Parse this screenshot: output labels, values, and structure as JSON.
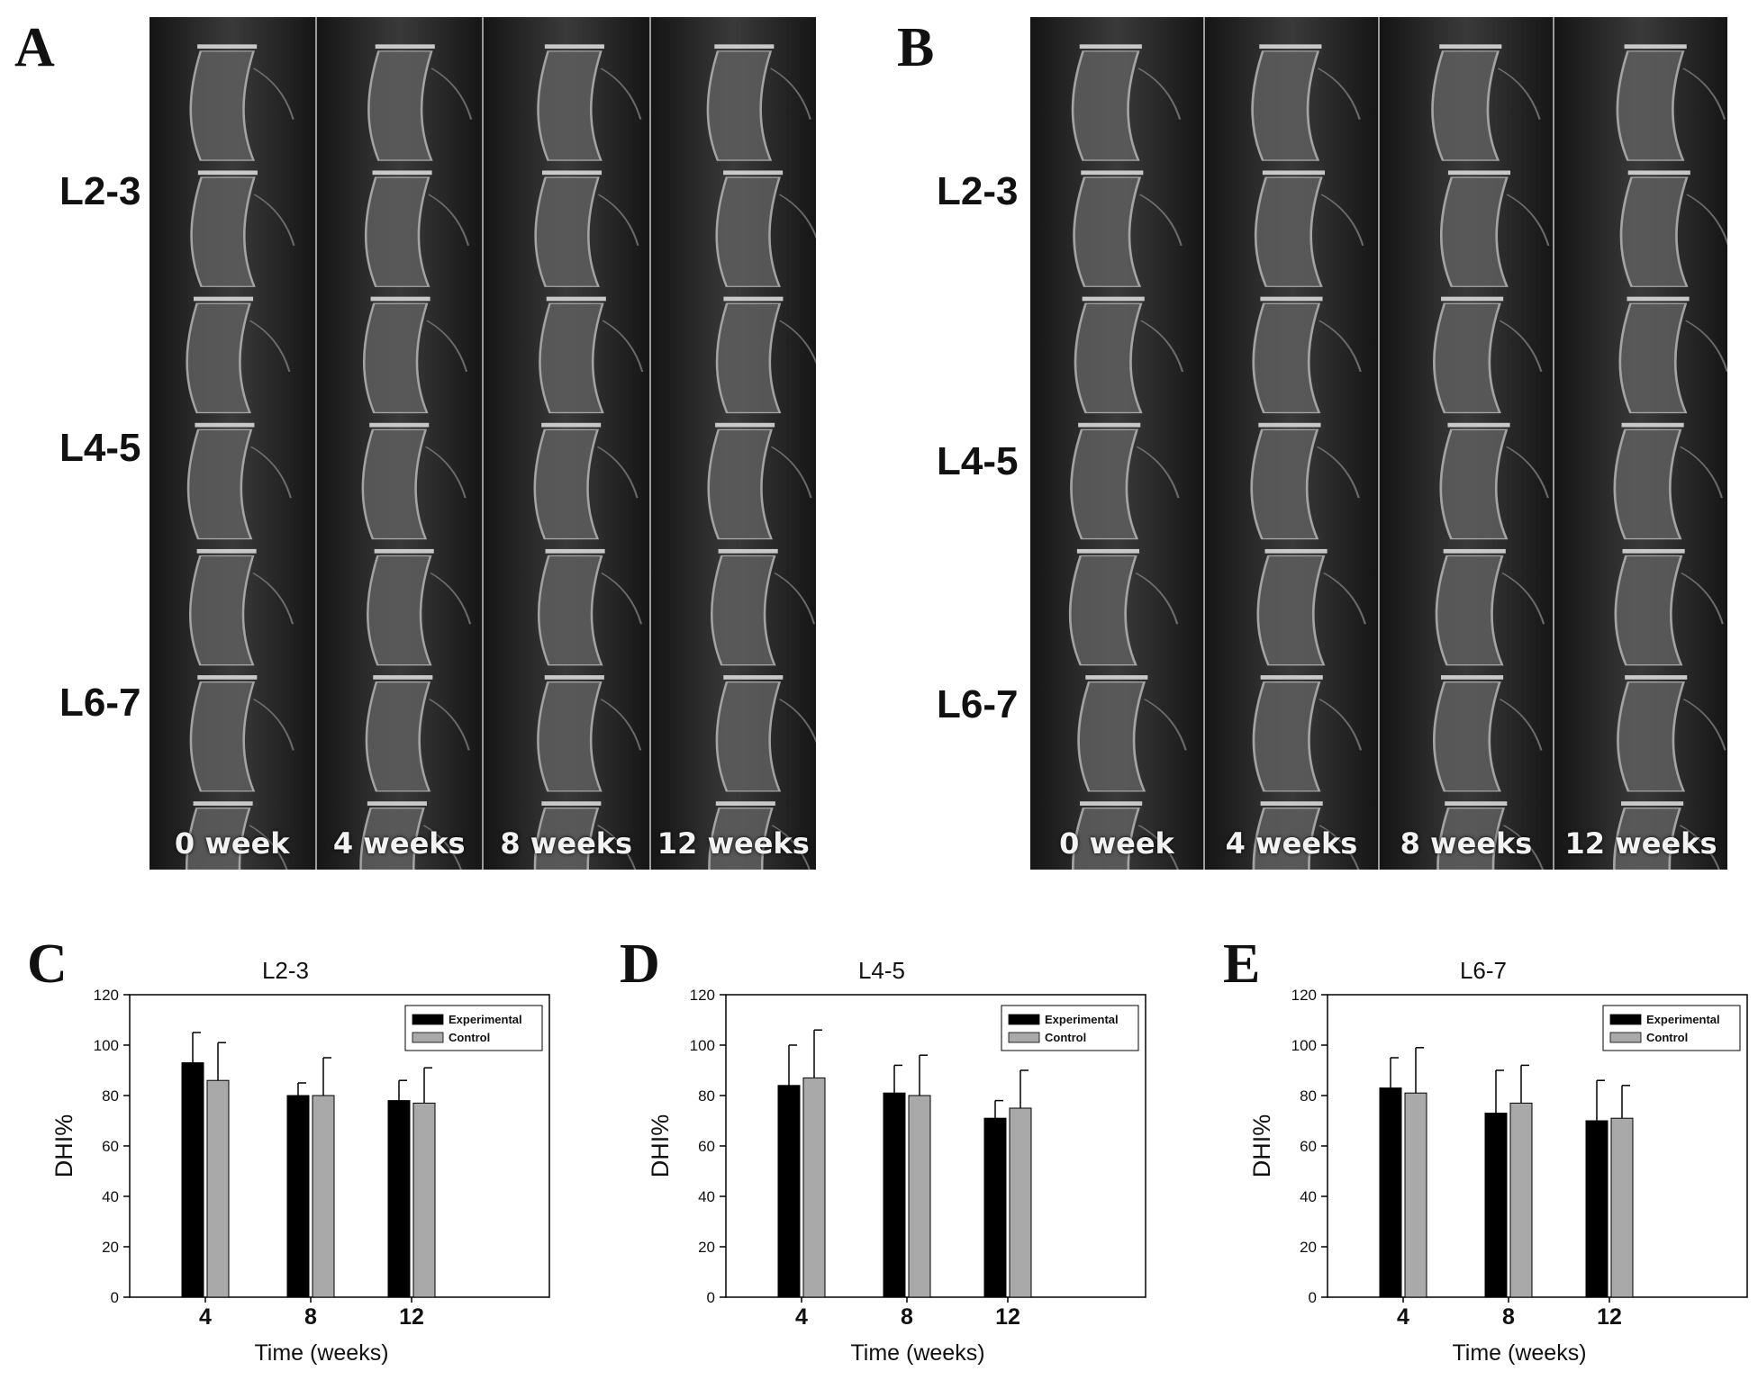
{
  "panels": {
    "A": {
      "letter": "A",
      "levels": [
        "L2-3",
        "L4-5",
        "L6-7"
      ],
      "frames": [
        "0 week",
        "4 weeks",
        "8 weeks",
        "12 weeks"
      ]
    },
    "B": {
      "letter": "B",
      "levels": [
        "L2-3",
        "L4-5",
        "L6-7"
      ],
      "frames": [
        "0 week",
        "4 weeks",
        "8 weeks",
        "12 weeks"
      ]
    },
    "C": {
      "letter": "C"
    },
    "D": {
      "letter": "D"
    },
    "E": {
      "letter": "E"
    }
  },
  "colors": {
    "experimental": "#000000",
    "control": "#a9a9a9",
    "xray_bg": "#1d1d1d",
    "bone": "#bdbdbd"
  },
  "chart_data": [
    {
      "type": "bar",
      "panel": "C",
      "title": "L2-3",
      "xlabel": "Time (weeks)",
      "ylabel": "DHI%",
      "ylim": [
        0,
        120
      ],
      "yticks": [
        "0",
        "20",
        "40",
        "60",
        "80",
        "100",
        "120"
      ],
      "categories": [
        "4",
        "8",
        "12"
      ],
      "series": [
        {
          "name": "Experimental",
          "values": [
            93,
            80,
            78
          ],
          "errors": [
            12,
            5,
            8
          ]
        },
        {
          "name": "Control",
          "values": [
            86,
            80,
            77
          ],
          "errors": [
            15,
            15,
            14
          ]
        }
      ],
      "legend": "top-right"
    },
    {
      "type": "bar",
      "panel": "D",
      "title": "L4-5",
      "xlabel": "Time (weeks)",
      "ylabel": "DHI%",
      "ylim": [
        0,
        120
      ],
      "yticks": [
        "0",
        "20",
        "40",
        "60",
        "80",
        "100",
        "120"
      ],
      "categories": [
        "4",
        "8",
        "12"
      ],
      "series": [
        {
          "name": "Experimental",
          "values": [
            84,
            81,
            71
          ],
          "errors": [
            16,
            11,
            7
          ]
        },
        {
          "name": "Control",
          "values": [
            87,
            80,
            75
          ],
          "errors": [
            19,
            16,
            15
          ]
        }
      ],
      "legend": "top-right"
    },
    {
      "type": "bar",
      "panel": "E",
      "title": "L6-7",
      "xlabel": "Time (weeks)",
      "ylabel": "DHI%",
      "ylim": [
        0,
        120
      ],
      "yticks": [
        "0",
        "20",
        "40",
        "60",
        "80",
        "100",
        "120"
      ],
      "categories": [
        "4",
        "8",
        "12"
      ],
      "series": [
        {
          "name": "Experimental",
          "values": [
            83,
            73,
            70
          ],
          "errors": [
            12,
            17,
            16
          ]
        },
        {
          "name": "Control",
          "values": [
            81,
            77,
            71
          ],
          "errors": [
            18,
            15,
            13
          ]
        }
      ],
      "legend": "top-right"
    }
  ]
}
